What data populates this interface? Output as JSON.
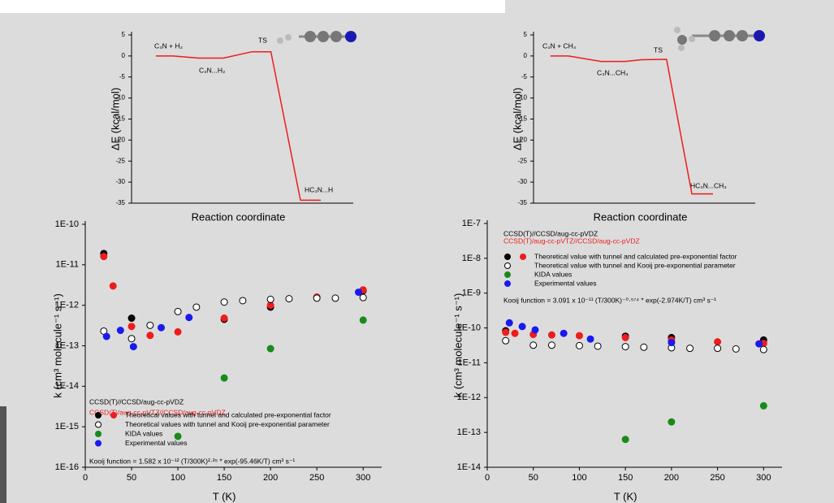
{
  "chart_data": [
    {
      "type": "line",
      "y_label": "ΔE (kcal/mol)",
      "x_label": "Reaction coordinate",
      "xlim": [
        0,
        10.5
      ],
      "ylim": [
        -35,
        5
      ],
      "yticks": [
        5,
        0,
        -5,
        -10,
        -15,
        -20,
        -25,
        -30,
        -35
      ],
      "series": [
        {
          "color": "#ee1c1c",
          "x": [
            1.15,
            1.96,
            3.2,
            4.35,
            5.7,
            6.6,
            8.0,
            8.96
          ],
          "values": [
            0,
            0,
            -0.5,
            -0.5,
            1,
            1,
            -34.3,
            -34.3
          ]
        }
      ],
      "annotations": [
        {
          "text": "C₃N + H₂"
        },
        {
          "text": "C₃N...H₂"
        },
        {
          "text": "TS"
        },
        {
          "text": "HC₃N...H"
        }
      ]
    },
    {
      "type": "line",
      "y_label": "ΔE (kcal/mol)",
      "x_label": "Reaction coordinate",
      "xlim": [
        0,
        10.5
      ],
      "ylim": [
        -35,
        5
      ],
      "yticks": [
        5,
        0,
        -5,
        -10,
        -15,
        -20,
        -25,
        -30,
        -35
      ],
      "series": [
        {
          "color": "#ee1c1c",
          "x": [
            0.8,
            1.65,
            3.2,
            4.35,
            5.1,
            6.3,
            7.5,
            8.5
          ],
          "values": [
            0,
            0,
            -1.3,
            -1.3,
            -0.9,
            -0.8,
            -32.8,
            -32.8
          ]
        }
      ],
      "annotations": [
        {
          "text": "C₃N + CH₄"
        },
        {
          "text": "C₃N...CH₄"
        },
        {
          "text": "TS"
        },
        {
          "text": "HC₃N...CH₃"
        }
      ]
    },
    {
      "type": "scatter",
      "log_scale": true,
      "y_label": "k (cm³ molecule⁻¹ s⁻¹)",
      "x_label": "T (K)",
      "xlim": [
        0,
        320
      ],
      "xticks": [
        0,
        50,
        100,
        150,
        200,
        250,
        300
      ],
      "ylim": [
        1e-16,
        1e-10
      ],
      "yticks": [
        {
          "value": 1e-16,
          "label": "1E-16"
        },
        {
          "value": 1e-15,
          "label": "1E-15"
        },
        {
          "value": 1e-14,
          "label": "1E-14"
        },
        {
          "value": 1e-13,
          "label": "1E-13"
        },
        {
          "value": 1e-12,
          "label": "1E-12"
        },
        {
          "value": 1e-11,
          "label": "1E-11"
        },
        {
          "value": 1e-10,
          "label": "1E-10"
        }
      ],
      "series": [
        {
          "name": "Theoretical values with tunnel and calculated pre-exponential factor",
          "color": "#000000",
          "x": [
            20,
            50,
            150,
            200,
            300
          ],
          "values": [
            1.9e-11,
            4.8e-13,
            4.5e-13,
            9e-13,
            2.3e-12
          ]
        },
        {
          "color": "#ee1c1c",
          "x": [
            20,
            30,
            50,
            70,
            100,
            150,
            200,
            250,
            300
          ],
          "values": [
            1.6e-11,
            3e-12,
            3e-13,
            1.8e-13,
            2.2e-13,
            4.8e-13,
            1e-12,
            1.6e-12,
            2.4e-12
          ]
        },
        {
          "name": "Theoretical values with tunnel and Kooij pre-exponential parameter",
          "color": "#ffffff",
          "x": [
            20,
            50,
            70,
            100,
            120,
            150,
            170,
            200,
            220,
            250,
            270,
            300
          ],
          "values": [
            2.3e-13,
            1.5e-13,
            3.2e-13,
            7e-13,
            9e-13,
            1.2e-12,
            1.3e-12,
            1.4e-12,
            1.45e-12,
            1.5e-12,
            1.5e-12,
            1.55e-12
          ]
        },
        {
          "name": "KIDA values",
          "color": "#1a8a1a",
          "x": [
            100,
            150,
            200,
            300
          ],
          "values": [
            5.8e-16,
            1.6e-14,
            8.5e-14,
            4.3e-13
          ]
        },
        {
          "name": "Experimental values",
          "color": "#1a1aee",
          "x": [
            23,
            38,
            52,
            82,
            112,
            295
          ],
          "values": [
            1.7e-13,
            2.4e-13,
            9.5e-14,
            2.8e-13,
            5e-13,
            2.1e-12
          ]
        }
      ],
      "annotations": [
        {
          "text": "CCSD(T)//CCSD/aug-cc-pVDZ",
          "color": "#000000"
        },
        {
          "text": "CCSD(T)/aug-cc-pVTZ//CCSD/aug-cc-pVDZ",
          "color": "#ee1c1c"
        },
        {
          "text": "Kooij function = 1.582 x 10⁻¹² (T/300K)²·³⁵ * exp(-95.46K/T) cm³ s⁻¹",
          "color": "#000000"
        }
      ]
    },
    {
      "type": "scatter",
      "log_scale": true,
      "y_label": "k (cm³ molecule⁻¹ s⁻¹)",
      "x_label": "T (K)",
      "xlim": [
        0,
        320
      ],
      "xticks": [
        0,
        50,
        100,
        150,
        200,
        250,
        300
      ],
      "ylim": [
        1e-14,
        1e-07
      ],
      "yticks": [
        {
          "value": 1e-14,
          "label": "1E-14"
        },
        {
          "value": 1e-13,
          "label": "1E-13"
        },
        {
          "value": 1e-12,
          "label": "1E-12"
        },
        {
          "value": 1e-11,
          "label": "1E-11"
        },
        {
          "value": 1e-10,
          "label": "1E-10"
        },
        {
          "value": 1e-09,
          "label": "1E-9"
        },
        {
          "value": 1e-08,
          "label": "1E-8"
        },
        {
          "value": 1e-07,
          "label": "1E-7"
        }
      ],
      "series": [
        {
          "name": "Theoretical value with tunnel and calculated pre-exponential factor",
          "color": "#000000",
          "x": [
            20,
            150,
            200,
            300
          ],
          "values": [
            8.3e-11,
            5.8e-11,
            5.3e-11,
            4.5e-11
          ]
        },
        {
          "color": "#ee1c1c",
          "x": [
            20,
            30,
            50,
            70,
            100,
            150,
            200,
            250,
            300
          ],
          "values": [
            7.5e-11,
            7e-11,
            6.5e-11,
            6.3e-11,
            6e-11,
            5.3e-11,
            4.5e-11,
            4e-11,
            3.6e-11
          ]
        },
        {
          "name": "Theoretical value with tunnel and Kooij pre-exponential parameter",
          "color": "#ffffff",
          "x": [
            20,
            50,
            70,
            100,
            120,
            150,
            170,
            200,
            220,
            250,
            270,
            300
          ],
          "values": [
            4.3e-11,
            3.2e-11,
            3.2e-11,
            3.1e-11,
            3e-11,
            2.9e-11,
            2.8e-11,
            2.7e-11,
            2.6e-11,
            2.6e-11,
            2.5e-11,
            2.4e-11
          ]
        },
        {
          "name": "KIDA values",
          "color": "#1a8a1a",
          "x": [
            150,
            200,
            300
          ],
          "values": [
            6.3e-14,
            2e-13,
            5.8e-13
          ]
        },
        {
          "name": "Experimental values",
          "color": "#1a1aee",
          "x": [
            24,
            38,
            52,
            83,
            112,
            200,
            295
          ],
          "values": [
            1.4e-10,
            1.1e-10,
            8.8e-11,
            7e-11,
            4.8e-11,
            3.8e-11,
            3.5e-11
          ]
        }
      ],
      "annotations": [
        {
          "text": "CCSD(T)//CCSD/aug-cc-pVDZ",
          "color": "#000000"
        },
        {
          "text": "CCSD(T)/aug-cc-pVTZ//CCSD/aug-cc-pVDZ",
          "color": "#ee1c1c"
        },
        {
          "text": "Kooij function = 3.091 x 10⁻¹¹ (T/300K)⁻⁰·⁵⁷⁴ * exp(-2.974K/T) cm³ s⁻¹",
          "color": "#000000"
        }
      ]
    }
  ]
}
